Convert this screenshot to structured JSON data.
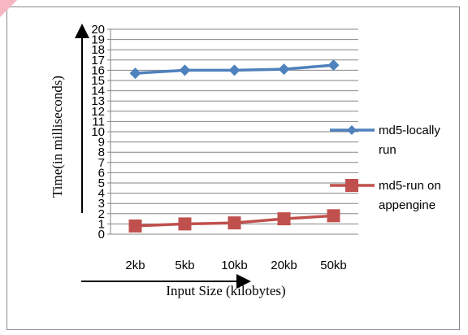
{
  "chart_data": {
    "type": "line",
    "categories": [
      "2kb",
      "5kb",
      "10kb",
      "20kb",
      "50kb"
    ],
    "series": [
      {
        "name": "md5-locally run",
        "values": [
          15.7,
          16.0,
          16.0,
          16.1,
          16.5
        ],
        "color": "#4f81bd",
        "marker": "diamond"
      },
      {
        "name": "md5-run on appengine",
        "values": [
          0.8,
          1.0,
          1.1,
          1.5,
          1.8
        ],
        "color": "#c0504d",
        "marker": "square"
      }
    ],
    "xlabel": "Input Size (kilobytes)",
    "ylabel": "Time(in milliseconds)",
    "ylim": [
      0,
      20
    ],
    "yticks": [
      0,
      1,
      2,
      3,
      4,
      5,
      6,
      7,
      8,
      9,
      10,
      11,
      12,
      13,
      14,
      15,
      16,
      17,
      18,
      19,
      20
    ],
    "grid": true,
    "legend_position": "right"
  }
}
